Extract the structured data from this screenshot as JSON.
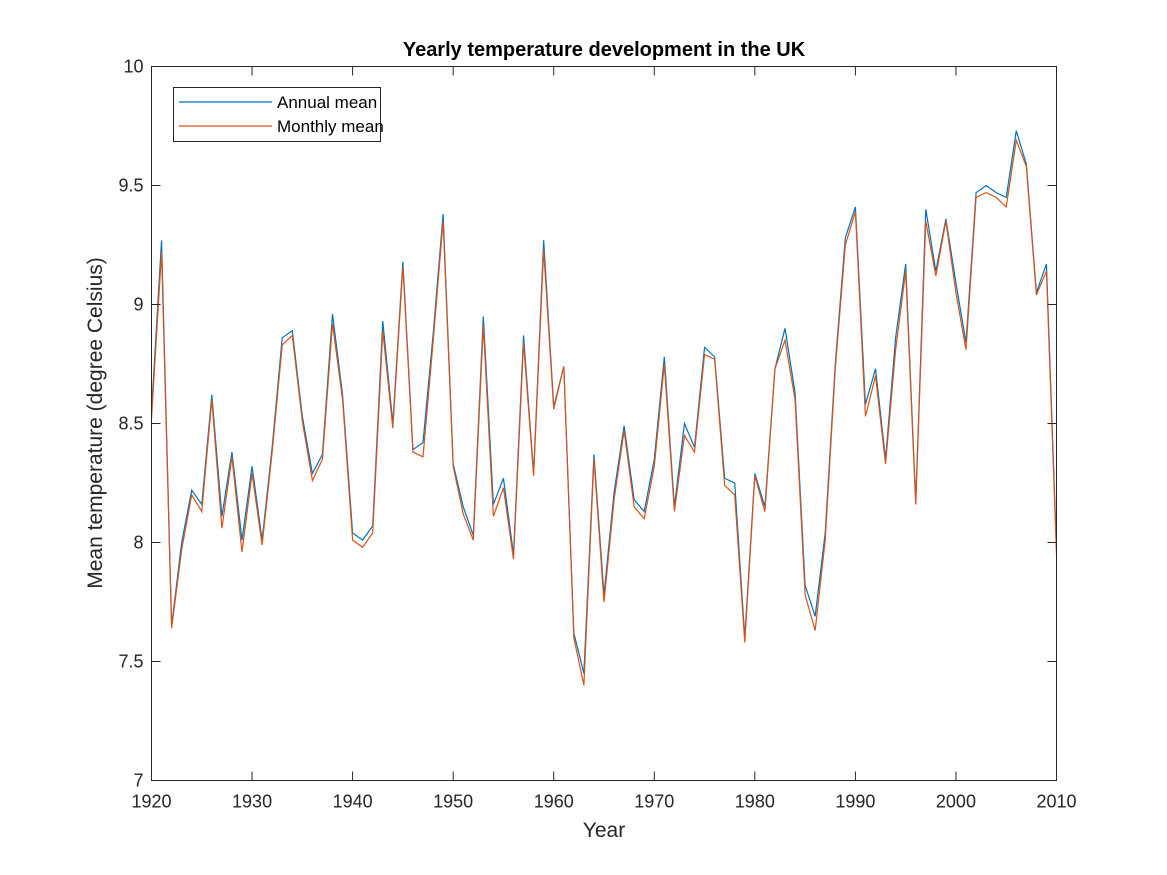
{
  "chart_data": {
    "type": "line",
    "title": "Yearly temperature development in the UK",
    "xlabel": "Year",
    "ylabel": "Mean temperature (degree Celsius)",
    "xlim": [
      1920,
      2010
    ],
    "ylim": [
      7,
      10
    ],
    "xticks": [
      "1920",
      "1930",
      "1940",
      "1950",
      "1960",
      "1970",
      "1980",
      "1990",
      "2000",
      "2010"
    ],
    "yticks": [
      "7",
      "7.5",
      "8",
      "8.5",
      "9",
      "9.5",
      "10"
    ],
    "grid": false,
    "legend_position": "top-left",
    "x": [
      1920,
      1921,
      1922,
      1923,
      1924,
      1925,
      1926,
      1927,
      1928,
      1929,
      1930,
      1931,
      1932,
      1933,
      1934,
      1935,
      1936,
      1937,
      1938,
      1939,
      1940,
      1941,
      1942,
      1943,
      1944,
      1945,
      1946,
      1947,
      1948,
      1949,
      1950,
      1951,
      1952,
      1953,
      1954,
      1955,
      1956,
      1957,
      1958,
      1959,
      1960,
      1961,
      1962,
      1963,
      1964,
      1965,
      1966,
      1967,
      1968,
      1969,
      1970,
      1971,
      1972,
      1973,
      1974,
      1975,
      1976,
      1977,
      1978,
      1979,
      1980,
      1981,
      1982,
      1983,
      1984,
      1985,
      1986,
      1987,
      1988,
      1989,
      1990,
      1991,
      1992,
      1993,
      1994,
      1995,
      1996,
      1997,
      1998,
      1999,
      2000,
      2001,
      2002,
      2003,
      2004,
      2005,
      2006,
      2007,
      2008,
      2009,
      2010
    ],
    "series": [
      {
        "name": "Annual mean",
        "color": "#0072BD",
        "values": [
          8.55,
          9.27,
          7.65,
          8.0,
          8.22,
          8.16,
          8.62,
          8.11,
          8.38,
          8.01,
          8.32,
          8.01,
          8.4,
          8.86,
          8.89,
          8.53,
          8.29,
          8.37,
          8.96,
          8.62,
          8.04,
          8.01,
          8.07,
          8.93,
          8.5,
          9.18,
          8.39,
          8.42,
          8.87,
          9.38,
          8.33,
          8.15,
          8.03,
          8.95,
          8.16,
          8.27,
          7.95,
          8.87,
          8.29,
          9.27,
          8.57,
          8.74,
          7.62,
          7.45,
          8.37,
          7.78,
          8.21,
          8.49,
          8.18,
          8.13,
          8.35,
          8.78,
          8.15,
          8.5,
          8.4,
          8.82,
          8.78,
          8.27,
          8.25,
          7.6,
          8.29,
          8.15,
          8.73,
          8.9,
          8.63,
          7.82,
          7.69,
          8.04,
          8.75,
          9.28,
          9.41,
          8.58,
          8.73,
          8.35,
          8.86,
          9.17,
          8.17,
          9.4,
          9.14,
          9.36,
          9.09,
          8.84,
          9.47,
          9.5,
          9.47,
          9.45,
          9.73,
          9.59,
          9.05,
          9.17,
          7.97
        ]
      },
      {
        "name": "Monthly mean",
        "color": "#D95319",
        "values": [
          8.52,
          9.22,
          7.64,
          7.97,
          8.2,
          8.13,
          8.6,
          8.06,
          8.36,
          7.96,
          8.29,
          7.99,
          8.38,
          8.83,
          8.87,
          8.51,
          8.26,
          8.35,
          8.92,
          8.6,
          8.01,
          7.98,
          8.04,
          8.89,
          8.48,
          9.16,
          8.38,
          8.36,
          8.84,
          9.35,
          8.32,
          8.12,
          8.01,
          8.91,
          8.11,
          8.23,
          7.93,
          8.84,
          8.28,
          9.23,
          8.56,
          8.74,
          7.6,
          7.4,
          8.35,
          7.75,
          8.18,
          8.47,
          8.15,
          8.1,
          8.32,
          8.75,
          8.13,
          8.45,
          8.38,
          8.79,
          8.77,
          8.24,
          8.2,
          7.58,
          8.28,
          8.13,
          8.73,
          8.85,
          8.6,
          7.78,
          7.63,
          8.01,
          8.73,
          9.25,
          9.39,
          8.53,
          8.7,
          8.33,
          8.81,
          9.14,
          8.16,
          9.35,
          9.12,
          9.35,
          9.05,
          8.81,
          9.45,
          9.47,
          9.45,
          9.41,
          9.69,
          9.58,
          9.04,
          9.14,
          7.95
        ]
      }
    ]
  }
}
